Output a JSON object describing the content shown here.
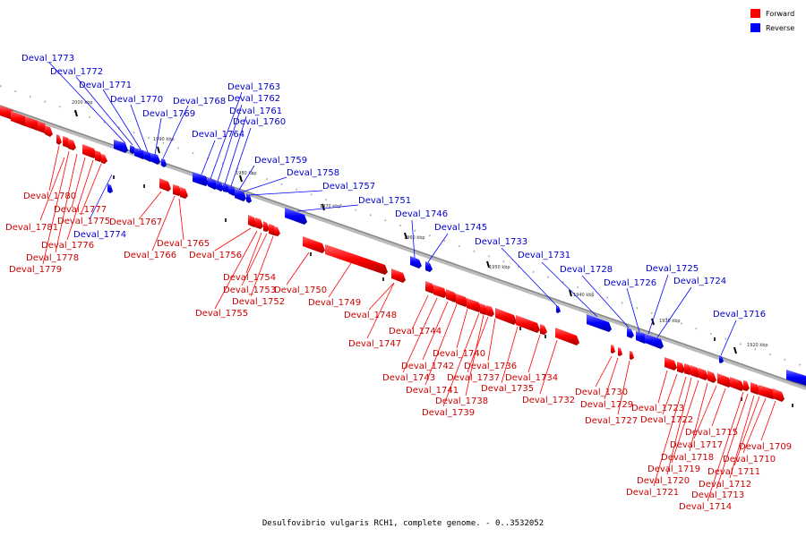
{
  "caption": "Desulfovibrio vulgaris RCH1, complete genome. - 0..3532052",
  "legend": [
    {
      "label": "Forward",
      "color": "#ff0000"
    },
    {
      "label": "Reverse",
      "color": "#0000ff"
    }
  ],
  "colors": {
    "forward": "#ff0000",
    "reverse": "#0000ff",
    "axis": "#999999"
  },
  "ticks": [
    "2000 kbp",
    "1990 kbp",
    "1980 kbp",
    "1970 kbp",
    "1960 kbp",
    "1950 kbp",
    "1940 kbp",
    "1930 kbp",
    "1920 kbp"
  ],
  "forward_genes": [
    "Deval_1781",
    "Deval_1780",
    "Deval_1779",
    "Deval_1778",
    "Deval_1777",
    "Deval_1776",
    "Deval_1775",
    "Deval_1767",
    "Deval_1766",
    "Deval_1765",
    "Deval_1756",
    "Deval_1755",
    "Deval_1754",
    "Deval_1753",
    "Deval_1752",
    "Deval_1750",
    "Deval_1749",
    "Deval_1748",
    "Deval_1747",
    "Deval_1744",
    "Deval_1743",
    "Deval_1742",
    "Deval_1741",
    "Deval_1740",
    "Deval_1739",
    "Deval_1738",
    "Deval_1737",
    "Deval_1736",
    "Deval_1735",
    "Deval_1734",
    "Deval_1732",
    "Deval_1730",
    "Deval_1729",
    "Deval_1727",
    "Deval_1723",
    "Deval_1722",
    "Deval_1721",
    "Deval_1720",
    "Deval_1719",
    "Deval_1718",
    "Deval_1717",
    "Deval_1715",
    "Deval_1714",
    "Deval_1713",
    "Deval_1712",
    "Deval_1711",
    "Deval_1710",
    "Deval_1709"
  ],
  "reverse_genes": [
    "Deval_1773",
    "Deval_1772",
    "Deval_1771",
    "Deval_1770",
    "Deval_1769",
    "Deval_1768",
    "Deval_1764",
    "Deval_1763",
    "Deval_1762",
    "Deval_1761",
    "Deval_1760",
    "Deval_1759",
    "Deval_1758",
    "Deval_1757",
    "Deval_1751",
    "Deval_1746",
    "Deval_1745",
    "Deval_1733",
    "Deval_1731",
    "Deval_1728",
    "Deval_1726",
    "Deval_1725",
    "Deval_1724",
    "Deval_1716",
    "Deval_1774"
  ]
}
